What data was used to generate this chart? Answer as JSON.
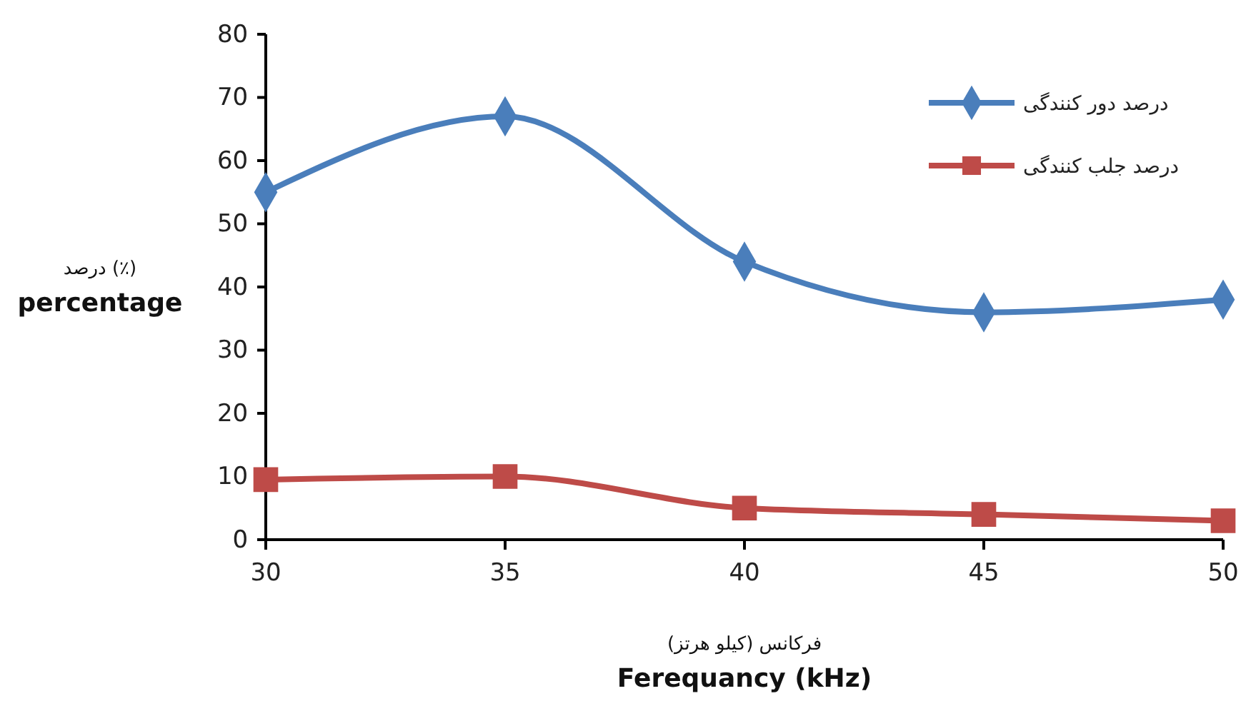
{
  "chart_data": {
    "type": "line",
    "xlabel": "فرکانس (کیلو هرتز)\nFerequancy (kHz)",
    "ylabel": "درصد (٪)\npercentage",
    "x": [
      30,
      35,
      40,
      45,
      50
    ],
    "xlim": [
      30,
      50
    ],
    "xticks": [
      30,
      35,
      40,
      45,
      50
    ],
    "ylim": [
      0,
      80
    ],
    "yticks": [
      0,
      10,
      20,
      30,
      40,
      50,
      60,
      70,
      80
    ],
    "legend": "top right",
    "grid": false,
    "series": [
      {
        "name": "درصد دور کنندگی",
        "color": "#4a7ebb",
        "values": [
          55,
          67,
          44,
          36,
          38
        ],
        "marker": "diamond"
      },
      {
        "name": "درصد جلب کنندگی",
        "color": "#be4b48",
        "values": [
          9.5,
          10,
          5,
          4,
          3
        ],
        "marker": "square"
      }
    ]
  }
}
